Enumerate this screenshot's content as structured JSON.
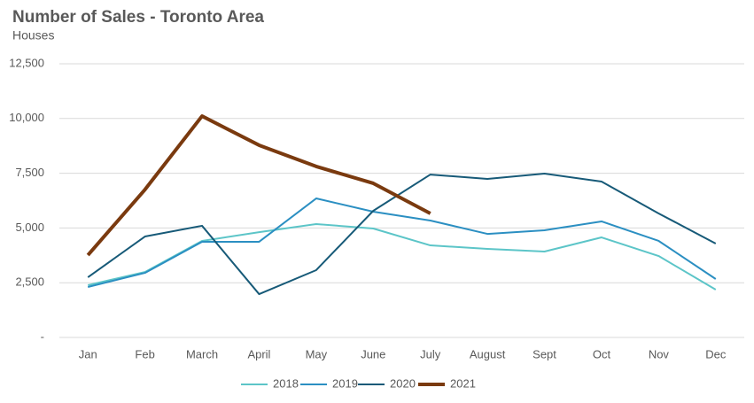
{
  "chart_data": {
    "type": "line",
    "title": "Number of Sales - Toronto Area",
    "subtitle": "Houses",
    "categories": [
      "Jan",
      "Feb",
      "March",
      "April",
      "May",
      "June",
      "July",
      "August",
      "Sept",
      "Oct",
      "Nov",
      "Dec"
    ],
    "series": [
      {
        "name": "2018",
        "color": "#5cc5c8",
        "width": 2,
        "values": [
          2390,
          2990,
          4410,
          4810,
          5180,
          4975,
          4205,
          4045,
          3925,
          4570,
          3720,
          2185
        ]
      },
      {
        "name": "2019",
        "color": "#2b8fc2",
        "width": 2,
        "values": [
          2305,
          2950,
          4370,
          4370,
          6350,
          5745,
          5340,
          4730,
          4895,
          5300,
          4410,
          2670
        ]
      },
      {
        "name": "2020",
        "color": "#175a78",
        "width": 2,
        "values": [
          2750,
          4610,
          5100,
          1980,
          3075,
          5785,
          7440,
          7240,
          7485,
          7120,
          5665,
          4290
        ]
      },
      {
        "name": "2021",
        "color": "#7a3a0f",
        "width": 4,
        "values": [
          3760,
          6755,
          10110,
          8780,
          7810,
          7040,
          5665,
          null,
          null,
          null,
          null,
          null
        ]
      }
    ],
    "ylim": [
      0,
      12500
    ],
    "yticks": [
      {
        "value": 0,
        "label": "-"
      },
      {
        "value": 2500,
        "label": "2,500"
      },
      {
        "value": 5000,
        "label": "5,000"
      },
      {
        "value": 7500,
        "label": "7,500"
      },
      {
        "value": 10000,
        "label": "10,000"
      },
      {
        "value": 12500,
        "label": "12,500"
      }
    ],
    "grid": true,
    "legend": "bottom"
  }
}
